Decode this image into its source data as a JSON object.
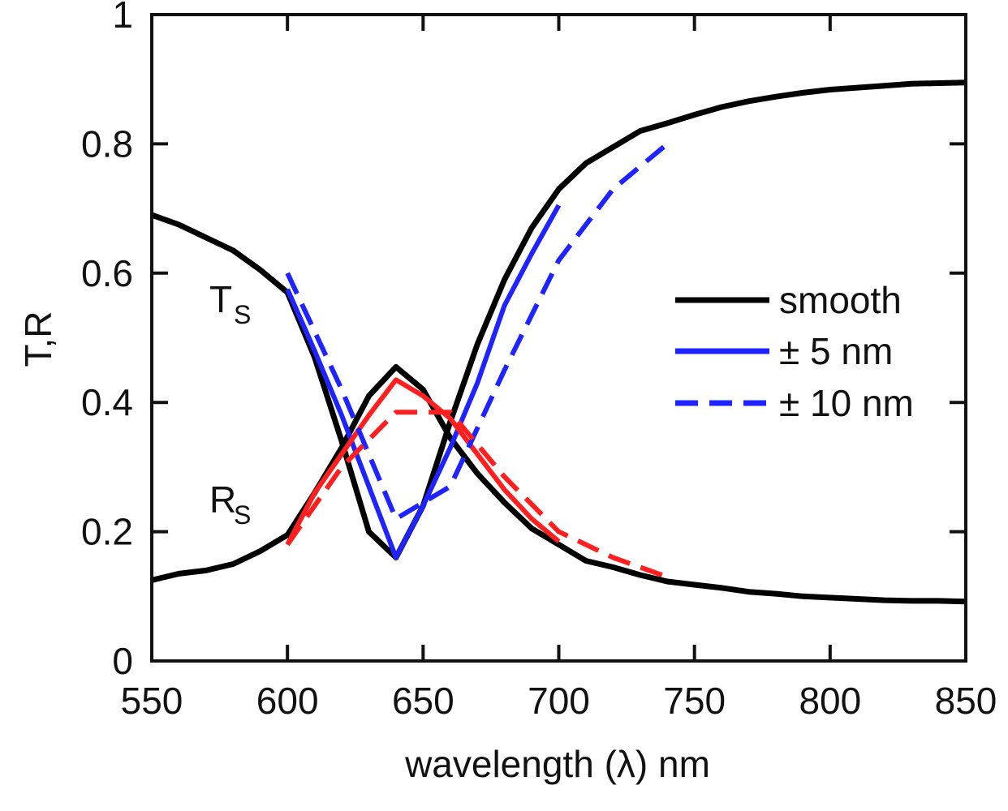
{
  "chart_data": {
    "type": "line",
    "xlabel": "wavelength (λ) nm",
    "ylabel": "T,R",
    "xlim": [
      550,
      850
    ],
    "ylim": [
      0,
      1
    ],
    "xticks": [
      550,
      600,
      650,
      700,
      750,
      800,
      850
    ],
    "yticks": [
      0,
      0.2,
      0.4,
      0.6,
      0.8,
      1
    ],
    "ytick_labels": [
      "0",
      "0.2",
      "0.4",
      "0.6",
      "0.8",
      "1"
    ],
    "grid": false,
    "legend_position": "right",
    "legend": [
      {
        "label": "smooth",
        "color": "#000000",
        "dash": "solid"
      },
      {
        "label": "± 5 nm",
        "color": "#1f23ff",
        "dash": "solid"
      },
      {
        "label": "± 10 nm",
        "color": "#1f23ff",
        "dash": "dashed"
      }
    ],
    "annotations": [
      {
        "main": "T",
        "sub": "S",
        "x": 615,
        "y": 0.57
      },
      {
        "main": "R",
        "sub": "S",
        "x": 615,
        "y": 0.24
      }
    ],
    "series": [
      {
        "name": "T smooth",
        "color": "#000000",
        "dash": "solid",
        "x": [
          550,
          560,
          570,
          580,
          590,
          600,
          610,
          620,
          630,
          640,
          650,
          660,
          670,
          680,
          690,
          700,
          710,
          720,
          730,
          740,
          750,
          760,
          770,
          780,
          790,
          800,
          810,
          820,
          830,
          840,
          850
        ],
        "y": [
          0.69,
          0.675,
          0.655,
          0.635,
          0.605,
          0.57,
          0.47,
          0.34,
          0.2,
          0.16,
          0.24,
          0.37,
          0.49,
          0.59,
          0.67,
          0.73,
          0.77,
          0.795,
          0.82,
          0.832,
          0.845,
          0.857,
          0.866,
          0.873,
          0.879,
          0.884,
          0.887,
          0.89,
          0.893,
          0.894,
          0.895
        ]
      },
      {
        "name": "R smooth",
        "color": "#000000",
        "dash": "solid",
        "x": [
          550,
          560,
          570,
          580,
          590,
          600,
          610,
          620,
          630,
          640,
          650,
          660,
          670,
          680,
          690,
          700,
          710,
          720,
          730,
          740,
          750,
          760,
          770,
          780,
          790,
          800,
          810,
          820,
          830,
          840,
          850
        ],
        "y": [
          0.125,
          0.135,
          0.14,
          0.15,
          0.17,
          0.195,
          0.26,
          0.33,
          0.41,
          0.455,
          0.42,
          0.345,
          0.29,
          0.245,
          0.205,
          0.18,
          0.155,
          0.145,
          0.133,
          0.123,
          0.118,
          0.113,
          0.107,
          0.104,
          0.1,
          0.098,
          0.096,
          0.094,
          0.093,
          0.093,
          0.092
        ]
      },
      {
        "name": "T ± 5 nm",
        "color": "#1f23ff",
        "dash": "solid",
        "x": [
          600,
          610,
          620,
          630,
          640,
          650,
          660,
          670,
          680,
          690,
          700
        ],
        "y": [
          0.575,
          0.48,
          0.38,
          0.27,
          0.16,
          0.24,
          0.33,
          0.43,
          0.55,
          0.63,
          0.705
        ]
      },
      {
        "name": "R ± 5 nm",
        "color": "#ff1f1f",
        "dash": "solid",
        "x": [
          600,
          610,
          620,
          630,
          640,
          650,
          660,
          670,
          680,
          690,
          700
        ],
        "y": [
          0.18,
          0.26,
          0.32,
          0.38,
          0.435,
          0.41,
          0.375,
          0.32,
          0.265,
          0.22,
          0.185
        ]
      },
      {
        "name": "T ± 10 nm",
        "color": "#1f23ff",
        "dash": "dashed",
        "x": [
          600,
          620,
          640,
          660,
          680,
          700,
          720,
          740
        ],
        "y": [
          0.6,
          0.42,
          0.22,
          0.27,
          0.45,
          0.62,
          0.73,
          0.8
        ]
      },
      {
        "name": "R ± 10 nm",
        "color": "#ff1f1f",
        "dash": "dashed",
        "x": [
          600,
          620,
          640,
          660,
          680,
          700,
          720,
          740
        ],
        "y": [
          0.18,
          0.3,
          0.385,
          0.385,
          0.285,
          0.2,
          0.16,
          0.13
        ]
      }
    ]
  }
}
